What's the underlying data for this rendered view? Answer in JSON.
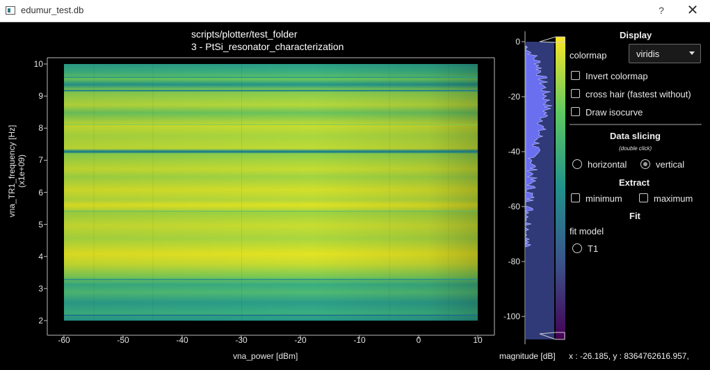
{
  "window": {
    "title": "edumur_test.db",
    "help": "?",
    "close": "✕"
  },
  "plot": {
    "title_line1": "scripts/plotter/test_folder",
    "title_line2": "3 - PtSi_resonator_characterization",
    "xlabel": "vna_power [dBm]",
    "ylabel": "vna_TR1_frequency [Hz] (x1e+09)",
    "xticks": [
      "-60",
      "-50",
      "-40",
      "-30",
      "-20",
      "-10",
      "0",
      "10"
    ],
    "yticks": [
      "2",
      "3",
      "4",
      "5",
      "6",
      "7",
      "8",
      "9",
      "10"
    ]
  },
  "chart_data": {
    "type": "heatmap",
    "title": "scripts/plotter/test_folder\n3 - PtSi_resonator_characterization",
    "xlabel": "vna_power [dBm]",
    "ylabel": "vna_TR1_frequency [Hz] (x1e+09)",
    "xlim": [
      -60,
      10
    ],
    "ylim": [
      2,
      10
    ],
    "colorbar": {
      "label": "magnitude [dB]",
      "ticks": [
        0,
        -20,
        -40,
        -60,
        -80,
        -100
      ],
      "colormap": "viridis"
    }
  },
  "histogram": {
    "ticks": [
      "0",
      "-20",
      "-40",
      "-60",
      "-80",
      "-100"
    ],
    "label": "magnitude [dB]"
  },
  "panel": {
    "display_heading": "Display",
    "colormap_label": "colormap",
    "colormap_value": "viridis",
    "invert_colormap": "Invert colormap",
    "cross_hair": "cross hair (fastest without)",
    "draw_isocurve": "Draw isocurve",
    "slicing_heading": "Data slicing",
    "slicing_hint": "(double click)",
    "horizontal": "horizontal",
    "vertical": "vertical",
    "extract_heading": "Extract",
    "minimum": "minimum",
    "maximum": "maximum",
    "fit_heading": "Fit",
    "fit_model": "fit model",
    "t1": "T1"
  },
  "status": {
    "coords": "x : -26.185, y : 8364762616.957,"
  }
}
